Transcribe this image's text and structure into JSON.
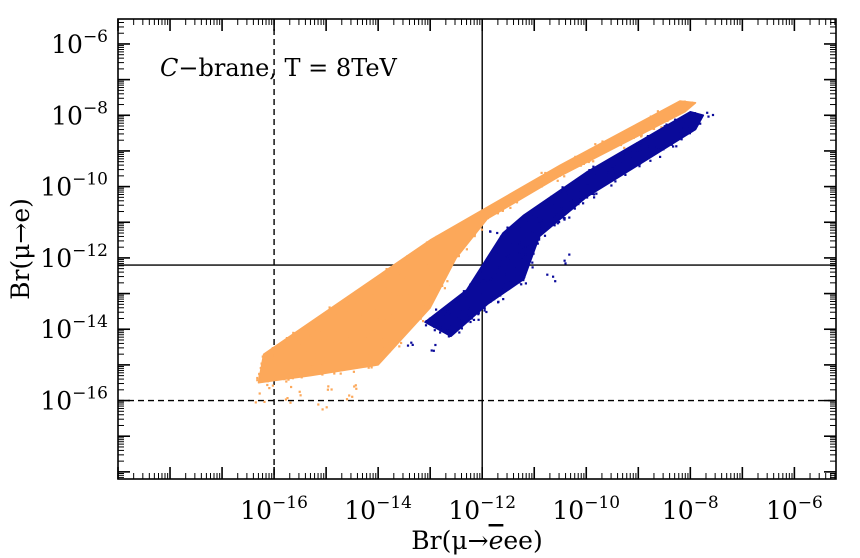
{
  "chart_data": {
    "type": "scatter",
    "title": "",
    "annotation": {
      "prefix": "C",
      "rest": "−brane, T = 8TeV"
    },
    "xlabel": {
      "pre": "Br(μ→",
      "ebar": "e",
      "post": "ee)"
    },
    "ylabel": "Br(μ→e)",
    "x_scale": "log",
    "y_scale": "log",
    "xlim_log10": [
      -19,
      -5.2
    ],
    "ylim_log10": [
      -18.2,
      -5.3
    ],
    "x_ticks": [
      {
        "exp": -16,
        "label": "10",
        "sup": "−16"
      },
      {
        "exp": -14,
        "label": "10",
        "sup": "−14"
      },
      {
        "exp": -12,
        "label": "10",
        "sup": "−12"
      },
      {
        "exp": -10,
        "label": "10",
        "sup": "−10"
      },
      {
        "exp": -8,
        "label": "10",
        "sup": "−8"
      },
      {
        "exp": -6,
        "label": "10",
        "sup": "−6"
      }
    ],
    "y_ticks": [
      {
        "exp": -16,
        "label": "10",
        "sup": "−16"
      },
      {
        "exp": -14,
        "label": "10",
        "sup": "−14"
      },
      {
        "exp": -12,
        "label": "10",
        "sup": "−12"
      },
      {
        "exp": -10,
        "label": "10",
        "sup": "−10"
      },
      {
        "exp": -8,
        "label": "10",
        "sup": "−8"
      },
      {
        "exp": -6,
        "label": "10",
        "sup": "−6"
      }
    ],
    "reference_lines": [
      {
        "orientation": "vertical",
        "x_log10": -16,
        "style": "dashed"
      },
      {
        "orientation": "vertical",
        "x_log10": -12,
        "style": "solid"
      },
      {
        "orientation": "horizontal",
        "y_log10": -12.2,
        "style": "solid"
      },
      {
        "orientation": "horizontal",
        "y_log10": -16,
        "style": "dashed"
      }
    ],
    "series": [
      {
        "name": "orange",
        "color": "#fca85a",
        "note": "dense band",
        "polygon_log10": [
          [
            -16.3,
            -15.5
          ],
          [
            -16.2,
            -14.7
          ],
          [
            -13.0,
            -11.5
          ],
          [
            -10.5,
            -9.4
          ],
          [
            -8.2,
            -7.6
          ],
          [
            -7.9,
            -7.65
          ],
          [
            -8.1,
            -7.9
          ],
          [
            -10.5,
            -9.7
          ],
          [
            -11.9,
            -10.9
          ],
          [
            -12.5,
            -12.0
          ],
          [
            -13.0,
            -13.4
          ],
          [
            -14.0,
            -15.0
          ],
          [
            -15.3,
            -15.3
          ]
        ],
        "outliers_log10": [
          [
            -16.4,
            -15.3
          ],
          [
            -16.3,
            -15.9
          ],
          [
            -15.1,
            -16.2
          ],
          [
            -14.6,
            -15.9
          ],
          [
            -15.6,
            -15.7
          ],
          [
            -16.1,
            -15.5
          ],
          [
            -14.4,
            -15.6
          ],
          [
            -14.9,
            -15.6
          ],
          [
            -15.8,
            -15.9
          ]
        ]
      },
      {
        "name": "blue",
        "color": "#0a0a9a",
        "note": "dense band",
        "polygon_log10": [
          [
            -13.1,
            -13.8
          ],
          [
            -12.3,
            -12.9
          ],
          [
            -11.6,
            -11.3
          ],
          [
            -11.2,
            -10.8
          ],
          [
            -10.0,
            -9.6
          ],
          [
            -8.0,
            -7.9
          ],
          [
            -7.75,
            -8.0
          ],
          [
            -7.9,
            -8.4
          ],
          [
            -10.0,
            -10.3
          ],
          [
            -10.9,
            -11.4
          ],
          [
            -11.2,
            -12.6
          ],
          [
            -11.9,
            -13.3
          ],
          [
            -12.6,
            -14.2
          ]
        ],
        "outliers_log10": [
          [
            -13.4,
            -14.3
          ],
          [
            -12.9,
            -14.5
          ],
          [
            -12.2,
            -13.8
          ],
          [
            -11.8,
            -11.2
          ],
          [
            -11.5,
            -11.7
          ],
          [
            -10.7,
            -12.5
          ],
          [
            -10.4,
            -12.0
          ],
          [
            -7.65,
            -7.9
          ],
          [
            -12.7,
            -13.6
          ]
        ]
      }
    ]
  }
}
